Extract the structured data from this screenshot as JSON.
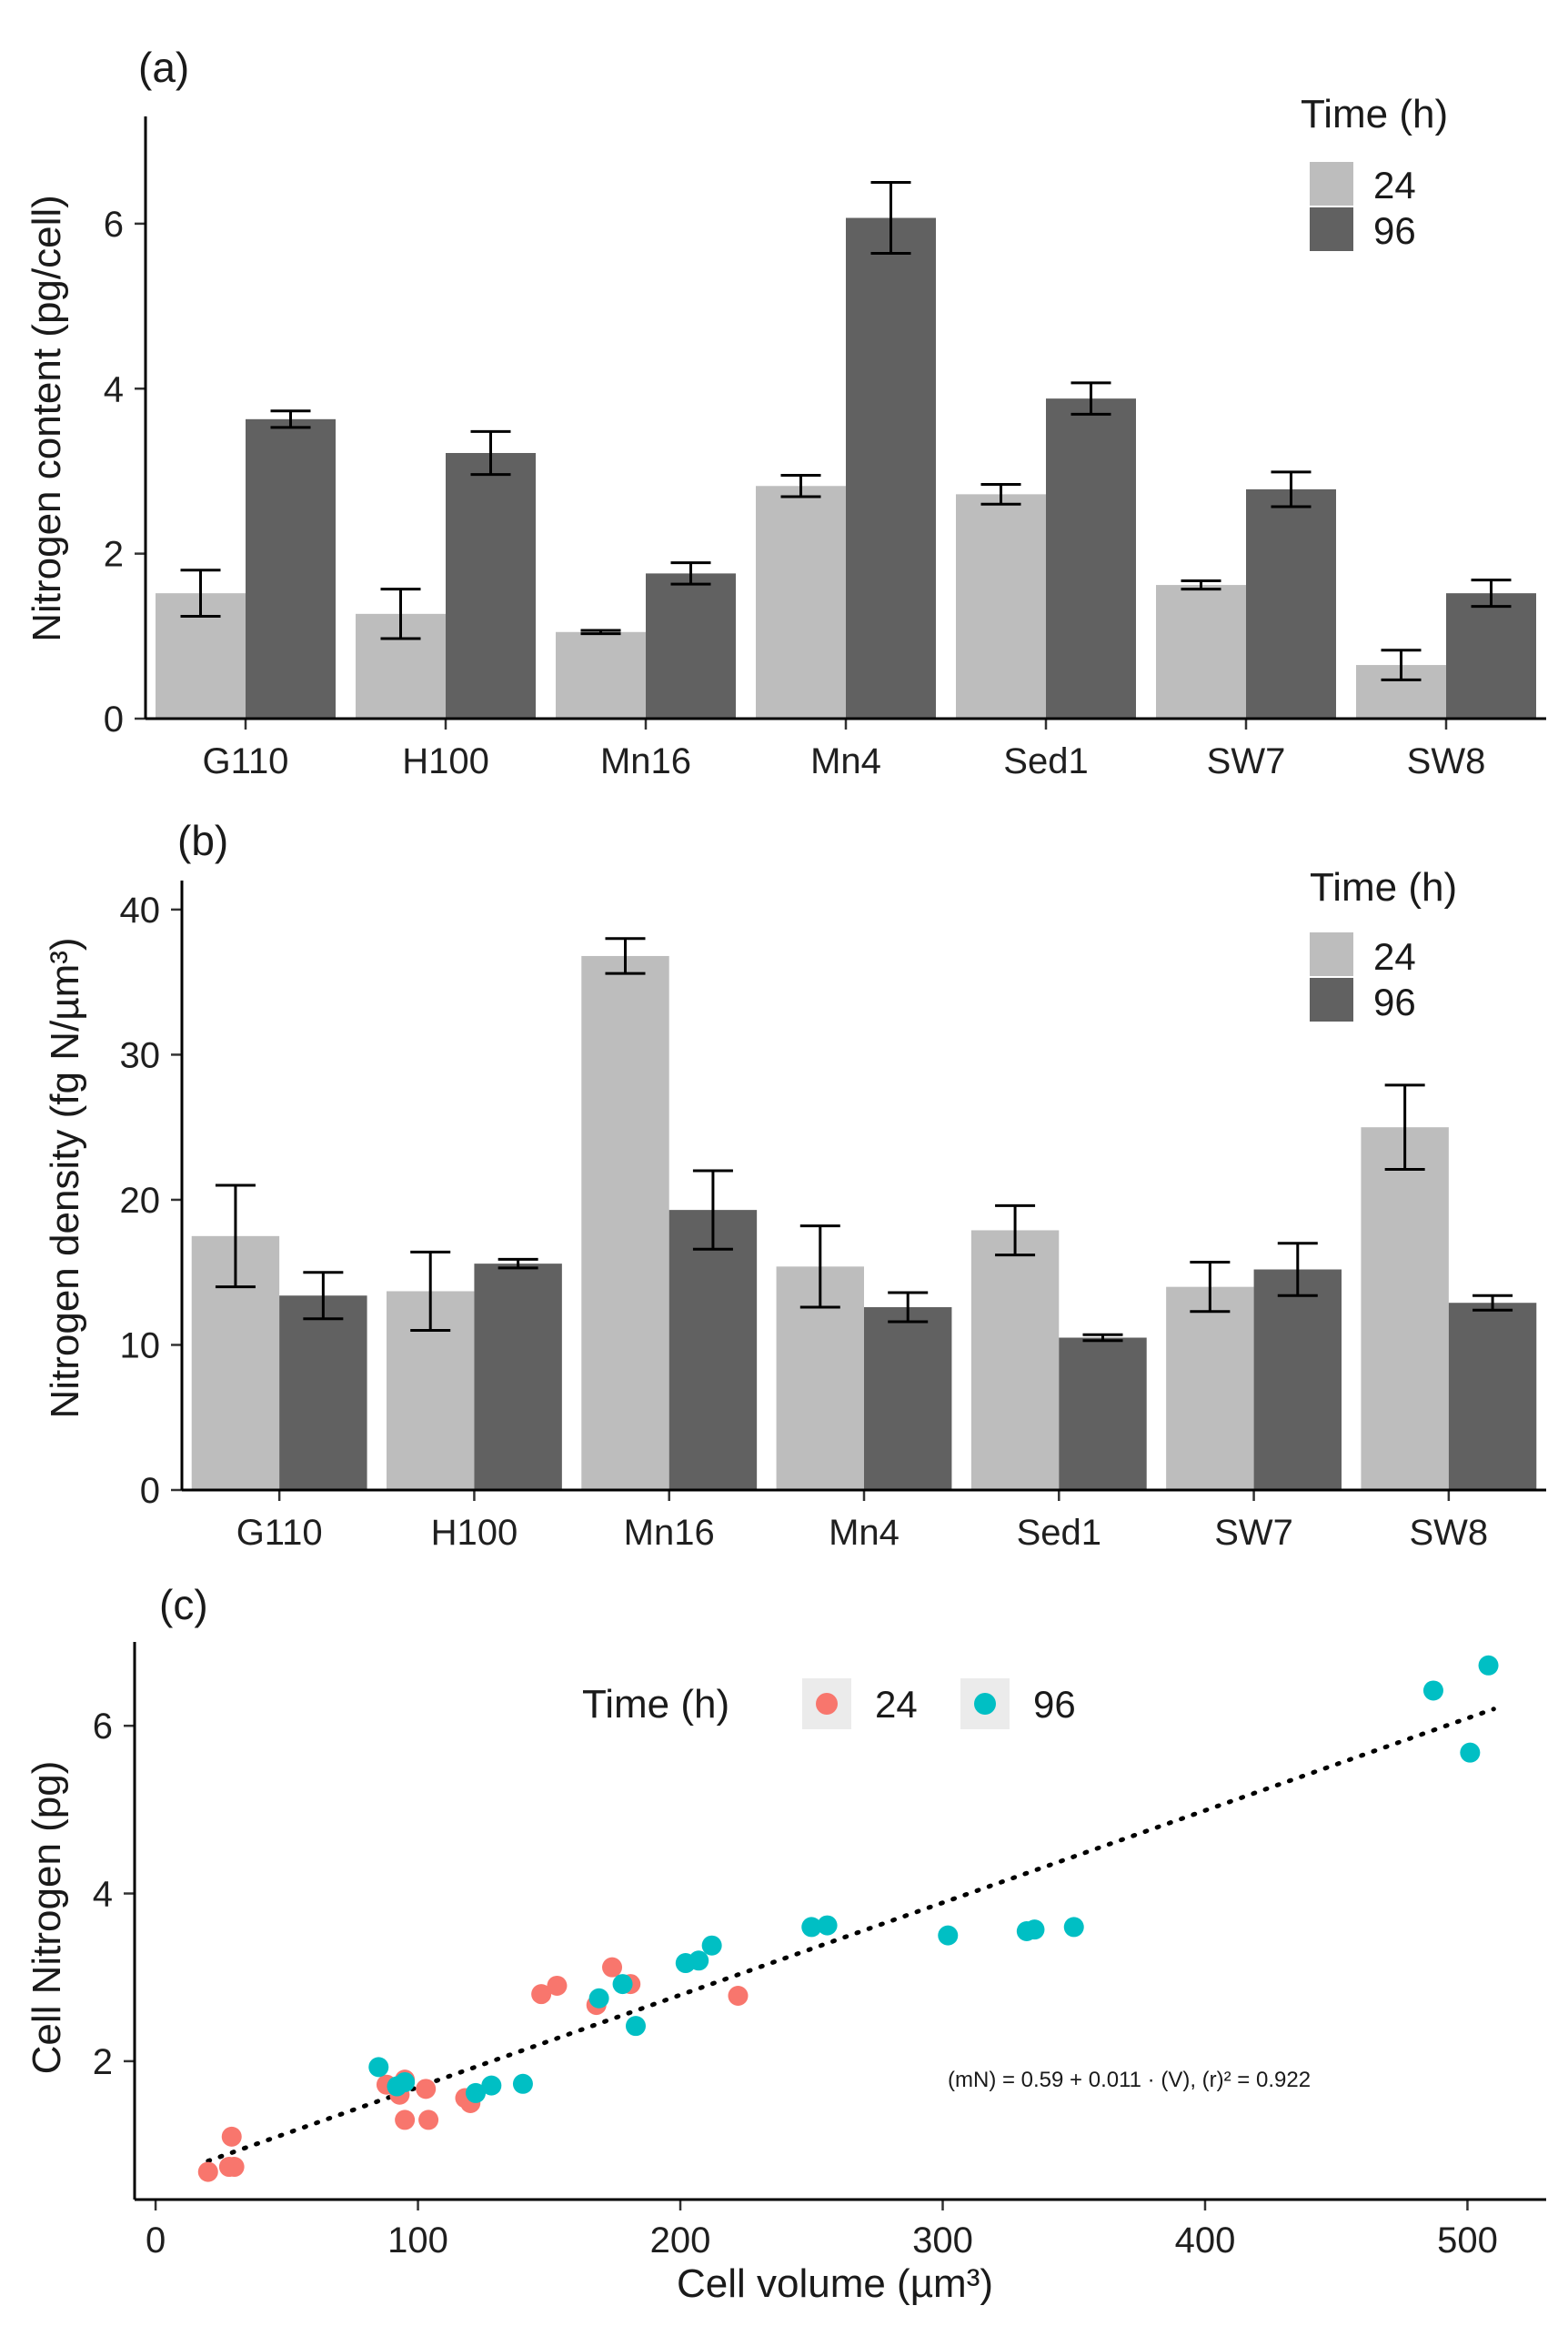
{
  "chart_data": [
    {
      "id": "a",
      "type": "bar",
      "panel_label": "(a)",
      "ylabel": "Nitrogen content (pg/cell)",
      "xlabel": "",
      "categories": [
        "G110",
        "H100",
        "Mn16",
        "Mn4",
        "Sed1",
        "SW7",
        "SW8"
      ],
      "ylim": [
        0,
        7.3
      ],
      "yticks": [
        0,
        2,
        4,
        6
      ],
      "legend": {
        "title": "Time (h)",
        "position": "top-right"
      },
      "series": [
        {
          "name": "24",
          "color": "#bdbdbd",
          "values": [
            1.52,
            1.27,
            1.05,
            2.82,
            2.72,
            1.62,
            0.65
          ],
          "errors": [
            0.28,
            0.3,
            0.02,
            0.13,
            0.12,
            0.05,
            0.18
          ]
        },
        {
          "name": "96",
          "color": "#616161",
          "values": [
            3.63,
            3.22,
            1.76,
            6.07,
            3.88,
            2.78,
            1.52
          ],
          "errors": [
            0.1,
            0.26,
            0.13,
            0.43,
            0.19,
            0.21,
            0.16
          ]
        }
      ]
    },
    {
      "id": "b",
      "type": "bar",
      "panel_label": "(b)",
      "ylabel": "Nitrogen density (fg N/µm³)",
      "xlabel": "",
      "categories": [
        "G110",
        "H100",
        "Mn16",
        "Mn4",
        "Sed1",
        "SW7",
        "SW8"
      ],
      "ylim": [
        0,
        42
      ],
      "yticks": [
        0,
        10,
        20,
        30,
        40
      ],
      "legend": {
        "title": "Time (h)",
        "position": "top-right"
      },
      "series": [
        {
          "name": "24",
          "color": "#bdbdbd",
          "values": [
            17.5,
            13.7,
            36.8,
            15.4,
            17.9,
            14.0,
            25.0
          ],
          "errors": [
            3.5,
            2.7,
            1.2,
            2.8,
            1.7,
            1.7,
            2.9
          ]
        },
        {
          "name": "96",
          "color": "#616161",
          "values": [
            13.4,
            15.6,
            19.3,
            12.6,
            10.5,
            15.2,
            12.9
          ],
          "errors": [
            1.6,
            0.3,
            2.7,
            1.0,
            0.2,
            1.8,
            0.5
          ]
        }
      ]
    },
    {
      "id": "c",
      "type": "scatter",
      "panel_label": "(c)",
      "xlabel": "Cell volume (µm³)",
      "ylabel": "Cell Nitrogen (pg)",
      "xlim": [
        -8,
        530
      ],
      "ylim": [
        0.35,
        7.0
      ],
      "xticks": [
        0,
        100,
        200,
        300,
        400,
        500
      ],
      "yticks": [
        2,
        4,
        6
      ],
      "legend": {
        "title": "Time (h)",
        "position": "top"
      },
      "fit": {
        "intercept": 0.59,
        "slope": 0.011,
        "x_range": [
          20,
          510
        ],
        "label": "(mN) = 0.59 + 0.011 · (V),  (r)² = 0.922"
      },
      "series": [
        {
          "name": "24",
          "color": "#f8766d",
          "x": [
            20,
            28,
            30,
            29,
            88,
            93,
            95,
            103,
            104,
            118,
            120,
            147,
            153,
            168,
            174,
            181,
            222,
            95
          ],
          "y": [
            0.68,
            0.74,
            0.74,
            1.1,
            1.72,
            1.6,
            1.3,
            1.67,
            1.3,
            1.56,
            1.5,
            2.8,
            2.9,
            2.67,
            3.12,
            2.92,
            2.78,
            1.78
          ]
        },
        {
          "name": "96",
          "color": "#00bfc4",
          "x": [
            85,
            92,
            95,
            122,
            128,
            140,
            169,
            178,
            183,
            202,
            207,
            212,
            250,
            256,
            302,
            332,
            335,
            350,
            487,
            501,
            508
          ],
          "y": [
            1.93,
            1.7,
            1.75,
            1.62,
            1.71,
            1.73,
            2.75,
            2.92,
            2.42,
            3.17,
            3.2,
            3.38,
            3.6,
            3.62,
            3.5,
            3.55,
            3.57,
            3.6,
            6.42,
            5.68,
            6.72
          ]
        }
      ]
    }
  ]
}
